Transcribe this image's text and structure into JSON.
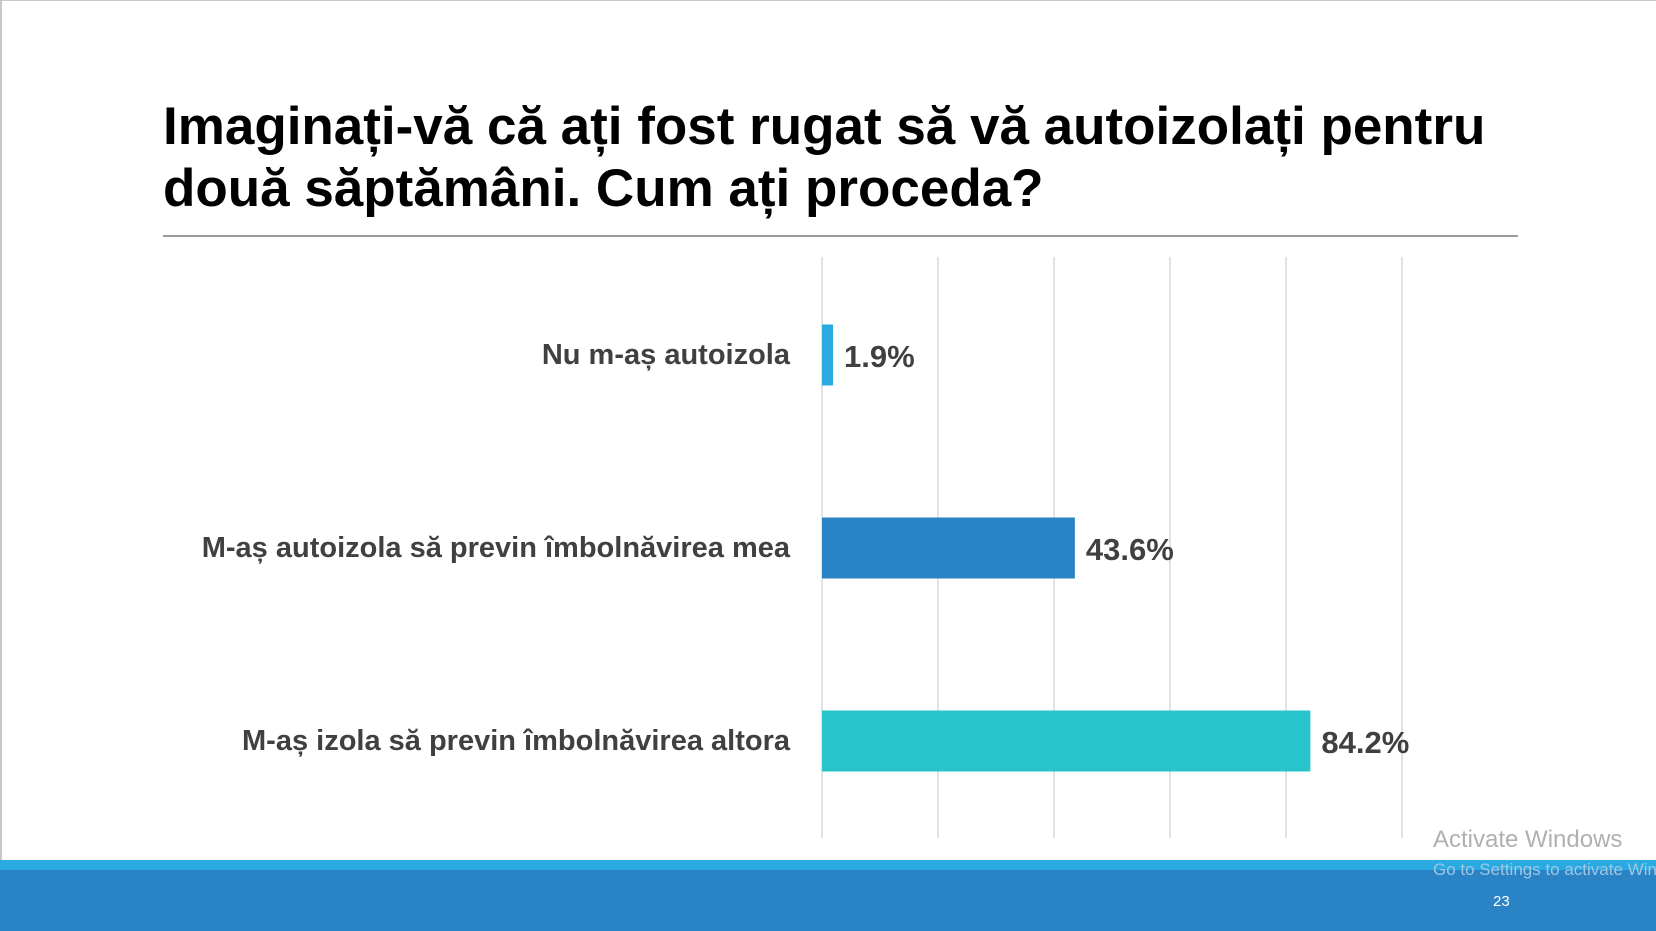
{
  "slide": {
    "title": "Imaginați-vă că ați fost rugat să vă autoizolați pentru două săptămâni. Cum ați proceda?",
    "page_number": "23"
  },
  "watermark": {
    "title": "Activate Windows",
    "subtitle": "Go to Settings to activate Windows."
  },
  "colors": {
    "bar_1": "#29abe2",
    "bar_2": "#2983c5",
    "bar_3": "#27c4cb",
    "gridline": "#d9d9d9",
    "footer": "#2983c5",
    "footer_stripe": "#29abe2"
  },
  "chart_data": {
    "type": "bar",
    "orientation": "horizontal",
    "categories": [
      "Nu m-aș autoizola",
      "M-aș autoizola să previn îmbolnăvirea mea",
      "M-aș izola să previn îmbolnăvirea altora"
    ],
    "values": [
      1.9,
      43.6,
      84.2
    ],
    "value_labels": [
      "1.9%",
      "43.6%",
      "84.2%"
    ],
    "xlim": [
      0,
      100
    ],
    "grid": true,
    "legend": "none"
  }
}
